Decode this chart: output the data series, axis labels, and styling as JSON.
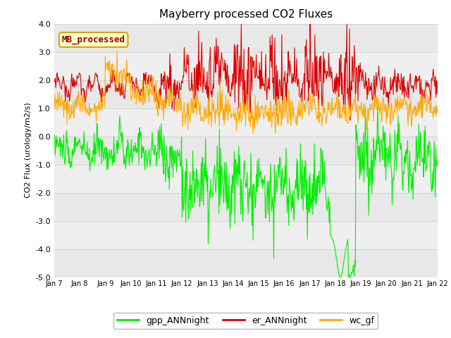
{
  "title": "Mayberry processed CO2 Fluxes",
  "ylabel": "CO2 Flux (urology/m2/s)",
  "ylim": [
    -5.0,
    4.0
  ],
  "yticks": [
    -5.0,
    -4.0,
    -3.0,
    -2.0,
    -1.0,
    0.0,
    1.0,
    2.0,
    3.0,
    4.0
  ],
  "xtick_labels": [
    "Jan 7",
    "Jan 8",
    "Jan 9",
    "Jan 10",
    "Jan 11",
    "Jan 12",
    "Jan 13",
    "Jan 14",
    "Jan 15",
    "Jan 16",
    "Jan 17",
    "Jan 18",
    "Jan 19",
    "Jan 20",
    "Jan 21",
    "Jan 22"
  ],
  "series": {
    "gpp_ANNnight": {
      "color": "#00ee00",
      "linewidth": 0.8
    },
    "er_ANNnight": {
      "color": "#dd0000",
      "linewidth": 0.8
    },
    "wc_gf": {
      "color": "#ffaa00",
      "linewidth": 0.8
    }
  },
  "annotation_text": "MB_processed",
  "bg_color": "#ffffff",
  "n_points": 720,
  "band_colors": [
    "#e8e8e8",
    "#efefef"
  ],
  "title_fontsize": 11,
  "tick_fontsize": 7,
  "ylabel_fontsize": 8
}
